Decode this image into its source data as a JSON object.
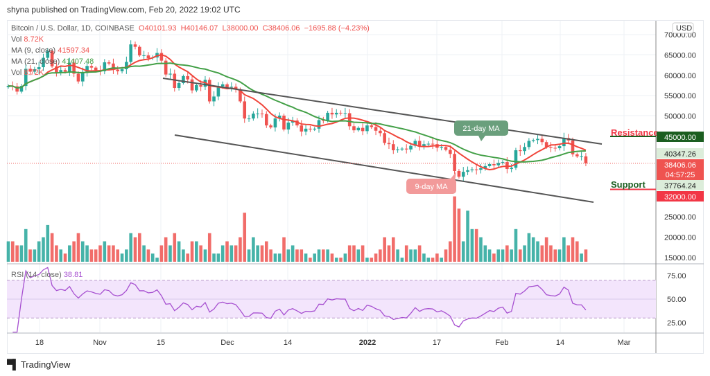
{
  "publisher_line": "shyna published on TradingView.com, Feb 20, 2022 19:02 UTC",
  "legend": {
    "symbol": "Bitcoin / U.S. Dollar, 1D, COINBASE",
    "open": "O40101.93",
    "high": "H40146.07",
    "low": "L38000.00",
    "close": "C38406.06",
    "change": "−1695.88 (−4.23%)",
    "vol_label": "Vol",
    "vol_value": "8.72K",
    "ma9_label": "MA (9, close)",
    "ma9_value": "41597.34",
    "ma21_label": "MA (21, close)",
    "ma21_value": "41407.48",
    "vol2_label": "Vol",
    "vol2_value": "8.72K",
    "rsi_label": "RSI (14, close)",
    "rsi_value": "38.81"
  },
  "colors": {
    "up": "#26a69a",
    "down": "#ef5350",
    "ma9": "#f0453a",
    "ma21": "#43a047",
    "rsi": "#a64fd0",
    "resistance": "#1b5e20",
    "support": "#f23645"
  },
  "chart_data": {
    "type": "candlestick",
    "currency": "USD",
    "start_date": "2021-10-11",
    "closes_k": [
      57.4,
      57.3,
      56.0,
      57.4,
      61.6,
      60.9,
      61.5,
      62.0,
      64.3,
      66.0,
      62.2,
      60.7,
      61.3,
      60.9,
      63.1,
      60.4,
      58.5,
      60.6,
      62.3,
      61.9,
      61.3,
      61.0,
      63.2,
      62.9,
      61.4,
      61.0,
      61.5,
      63.3,
      67.6,
      67.0,
      64.9,
      64.9,
      64.2,
      64.4,
      65.5,
      63.6,
      60.2,
      60.4,
      56.9,
      58.1,
      59.8,
      59.0,
      56.3,
      57.6,
      57.2,
      58.9,
      53.6,
      54.8,
      57.3,
      57.8,
      57.0,
      57.2,
      56.5,
      53.6,
      49.4,
      49.4,
      50.6,
      50.6,
      50.5,
      47.7,
      47.2,
      49.4,
      50.1,
      46.7,
      48.4,
      48.9,
      47.7,
      46.2,
      46.9,
      46.7,
      46.9,
      49.0,
      48.9,
      50.8,
      50.4,
      50.8,
      50.7,
      50.7,
      47.5,
      46.5,
      47.1,
      46.3,
      47.7,
      47.3,
      46.4,
      45.8,
      43.4,
      43.1,
      41.6,
      41.8,
      42.0,
      41.8,
      42.7,
      43.9,
      42.6,
      43.1,
      43.2,
      43.1,
      42.2,
      42.4,
      41.7,
      40.7,
      36.5,
      35.1,
      36.3,
      36.7,
      36.9,
      36.8,
      37.2,
      37.7,
      38.2,
      37.9,
      38.5,
      38.7,
      37.0,
      37.3,
      41.6,
      41.4,
      42.4,
      43.9,
      44.1,
      44.4,
      43.6,
      42.4,
      42.2,
      42.1,
      42.6,
      44.6,
      44.0,
      40.6,
      40.1,
      40.1,
      38.4
    ],
    "volume_k": [
      19,
      19,
      18,
      18,
      22,
      17,
      17,
      19,
      20,
      23,
      21,
      18,
      17,
      16,
      18,
      19,
      21,
      19,
      18,
      17,
      17,
      18,
      19,
      18,
      18,
      17,
      16,
      17,
      21,
      20,
      21,
      18,
      17,
      16,
      15,
      18,
      20,
      18,
      21,
      19,
      17,
      16,
      19,
      19,
      18,
      17,
      21,
      16,
      16,
      18,
      19,
      18,
      18,
      20,
      26,
      17,
      20,
      18,
      18,
      19,
      17,
      16,
      16,
      20,
      17,
      18,
      17,
      17,
      16,
      15,
      16,
      17,
      17,
      17,
      16,
      15,
      15,
      16,
      18,
      18,
      17,
      18,
      15,
      15,
      16,
      17,
      20,
      18,
      20,
      17,
      15,
      18,
      17,
      17,
      18,
      16,
      15,
      15,
      16,
      15,
      17,
      19,
      30,
      27,
      19,
      26.5,
      22,
      22,
      20,
      18,
      17,
      16,
      17,
      17,
      18,
      17,
      22,
      17,
      18,
      21,
      20,
      19,
      18,
      20,
      18,
      17,
      17,
      20,
      18,
      20,
      19,
      16,
      17
    ],
    "price_ticks": [
      "70000.00",
      "65000.00",
      "60000.00",
      "55000.00",
      "50000.00"
    ],
    "volume_ticks": [
      "25000.00",
      "20000.00",
      "15000.00"
    ],
    "rsi_ticks": [
      "75.00",
      "50.00",
      "25.00"
    ],
    "x_ticks": [
      "18",
      "Nov",
      "15",
      "Dec",
      "14",
      "2022",
      "17",
      "Feb",
      "14",
      "Mar"
    ],
    "labels": {
      "resistance_price": "45000.00",
      "ma_a": "40347.26",
      "last_price": "38406.06",
      "countdown": "04:57:25",
      "ma_b": "37764.24",
      "support_price": "32000.00"
    },
    "annotations": {
      "resistance": "Resistance",
      "support": "Support",
      "ma21": "21-day MA",
      "ma9": "9-day MA"
    },
    "levels": {
      "resistance": 45000,
      "support": 32000
    }
  },
  "footer": {
    "brand": "TradingView"
  }
}
